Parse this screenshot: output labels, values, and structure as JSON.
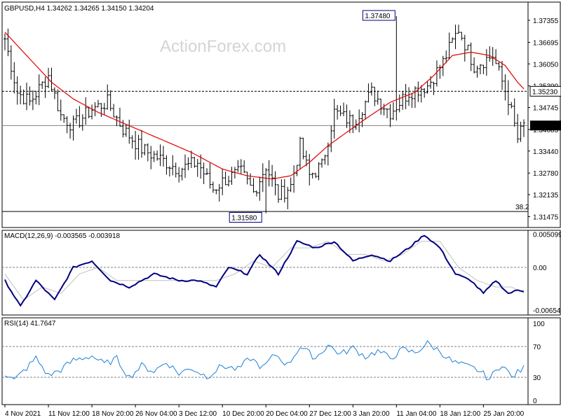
{
  "chart_data": [
    {
      "type": "ohlc",
      "title": "GBPUSD,H4  1.34262 1.34265 1.34150 1.34204",
      "watermark": "ActionForex.com",
      "ylim": [
        1.3115,
        1.379
      ],
      "y_ticks": [
        "1.37355",
        "1.36695",
        "1.36050",
        "1.35390",
        "1.34745",
        "1.34085",
        "1.33440",
        "1.32780",
        "1.32135",
        "1.31475"
      ],
      "y_tick_values": [
        1.37355,
        1.36695,
        1.3605,
        1.3539,
        1.34745,
        1.34085,
        1.3344,
        1.3278,
        1.32135,
        1.31475
      ],
      "current_price": "1.34204",
      "current_price_value": 1.34204,
      "resistance_line": "1.35230",
      "resistance_value": 1.3523,
      "fib_line_value": 1.3163,
      "fib_label": "38.2",
      "high_label": "1.37480",
      "high_value": 1.3748,
      "low_label": "1.31580",
      "low_value": 1.3158,
      "bar_count": 168,
      "close_keypoints": [
        [
          0,
          1.368
        ],
        [
          4,
          1.352
        ],
        [
          8,
          1.349
        ],
        [
          14,
          1.357
        ],
        [
          18,
          1.345
        ],
        [
          22,
          1.342
        ],
        [
          28,
          1.347
        ],
        [
          33,
          1.349
        ],
        [
          38,
          1.341
        ],
        [
          44,
          1.335
        ],
        [
          50,
          1.332
        ],
        [
          56,
          1.329
        ],
        [
          62,
          1.331
        ],
        [
          67,
          1.323
        ],
        [
          71,
          1.326
        ],
        [
          76,
          1.328
        ],
        [
          80,
          1.322
        ],
        [
          84,
          1.33
        ],
        [
          88,
          1.321
        ],
        [
          92,
          1.324
        ],
        [
          95,
          1.336
        ],
        [
          98,
          1.327
        ],
        [
          102,
          1.33
        ],
        [
          106,
          1.346
        ],
        [
          112,
          1.343
        ],
        [
          118,
          1.352
        ],
        [
          124,
          1.346
        ],
        [
          130,
          1.352
        ],
        [
          136,
          1.354
        ],
        [
          141,
          1.361
        ],
        [
          146,
          1.371
        ],
        [
          151,
          1.36
        ],
        [
          157,
          1.363
        ],
        [
          162,
          1.35
        ],
        [
          165,
          1.338
        ],
        [
          167,
          1.342
        ]
      ],
      "ma_keypoints": [
        [
          0,
          1.37
        ],
        [
          8,
          1.362
        ],
        [
          15,
          1.355
        ],
        [
          22,
          1.35
        ],
        [
          30,
          1.346
        ],
        [
          40,
          1.342
        ],
        [
          50,
          1.338
        ],
        [
          60,
          1.334
        ],
        [
          70,
          1.329
        ],
        [
          78,
          1.327
        ],
        [
          86,
          1.326
        ],
        [
          92,
          1.327
        ],
        [
          98,
          1.331
        ],
        [
          104,
          1.336
        ],
        [
          110,
          1.34
        ],
        [
          116,
          1.344
        ],
        [
          124,
          1.349
        ],
        [
          132,
          1.352
        ],
        [
          138,
          1.357
        ],
        [
          144,
          1.363
        ],
        [
          150,
          1.364
        ],
        [
          156,
          1.363
        ],
        [
          161,
          1.36
        ],
        [
          165,
          1.355
        ],
        [
          167,
          1.353
        ]
      ]
    },
    {
      "type": "line",
      "title": "MACD(12,26,9) -0.003565 -0.003918",
      "ylim": [
        -0.0073,
        0.0057
      ],
      "y_ticks": [
        "0.005099",
        "0.00",
        "-0.006543"
      ],
      "y_tick_values": [
        0.005099,
        0.0,
        -0.006543
      ],
      "zero_label": "0.00",
      "series": [
        {
          "name": "MACD",
          "color": "#000080",
          "keypoints": [
            [
              0,
              -0.002
            ],
            [
              5,
              -0.006
            ],
            [
              10,
              -0.002
            ],
            [
              16,
              -0.005
            ],
            [
              22,
              0.0
            ],
            [
              28,
              0.001
            ],
            [
              34,
              -0.002
            ],
            [
              40,
              -0.003
            ],
            [
              48,
              -0.001
            ],
            [
              56,
              -0.002
            ],
            [
              62,
              -0.002
            ],
            [
              68,
              -0.003
            ],
            [
              72,
              0.0
            ],
            [
              78,
              -0.001
            ],
            [
              82,
              0.002
            ],
            [
              88,
              -0.001
            ],
            [
              94,
              0.004
            ],
            [
              100,
              0.003
            ],
            [
              106,
              0.004
            ],
            [
              112,
              0.001
            ],
            [
              118,
              0.002
            ],
            [
              124,
              0.001
            ],
            [
              130,
              0.003
            ],
            [
              135,
              0.005
            ],
            [
              140,
              0.003
            ],
            [
              145,
              -0.001
            ],
            [
              150,
              -0.002
            ],
            [
              154,
              -0.004
            ],
            [
              158,
              -0.002
            ],
            [
              162,
              -0.004
            ],
            [
              165,
              -0.0035
            ],
            [
              167,
              -0.0036
            ]
          ]
        },
        {
          "name": "Signal",
          "color": "#c0c0c0",
          "keypoints": [
            [
              0,
              -0.001
            ],
            [
              6,
              -0.005
            ],
            [
              12,
              -0.003
            ],
            [
              18,
              -0.004
            ],
            [
              24,
              -0.001
            ],
            [
              30,
              0.0
            ],
            [
              36,
              -0.002
            ],
            [
              44,
              -0.002
            ],
            [
              52,
              -0.002
            ],
            [
              60,
              -0.002
            ],
            [
              68,
              -0.002
            ],
            [
              74,
              -0.001
            ],
            [
              80,
              0.001
            ],
            [
              86,
              0.0
            ],
            [
              92,
              0.003
            ],
            [
              98,
              0.003
            ],
            [
              104,
              0.004
            ],
            [
              110,
              0.002
            ],
            [
              116,
              0.002
            ],
            [
              122,
              0.001
            ],
            [
              128,
              0.002
            ],
            [
              134,
              0.004
            ],
            [
              140,
              0.004
            ],
            [
              146,
              0.0
            ],
            [
              152,
              -0.002
            ],
            [
              158,
              -0.003
            ],
            [
              163,
              -0.003
            ],
            [
              167,
              -0.0039
            ]
          ]
        }
      ]
    },
    {
      "type": "line",
      "title": "RSI(14) 41.7647",
      "ylim": [
        0,
        100
      ],
      "y_ticks": [
        "100",
        "70",
        "30",
        "0"
      ],
      "y_tick_values": [
        100,
        70,
        30,
        0
      ],
      "levels": [
        70,
        30
      ],
      "series": [
        {
          "name": "RSI",
          "color": "#1e7fd6",
          "keypoints": [
            [
              0,
              35
            ],
            [
              3,
              26
            ],
            [
              7,
              42
            ],
            [
              10,
              55
            ],
            [
              14,
              32
            ],
            [
              18,
              40
            ],
            [
              22,
              52
            ],
            [
              28,
              58
            ],
            [
              32,
              47
            ],
            [
              36,
              54
            ],
            [
              40,
              30
            ],
            [
              44,
              45
            ],
            [
              48,
              38
            ],
            [
              52,
              50
            ],
            [
              56,
              35
            ],
            [
              60,
              42
            ],
            [
              65,
              31
            ],
            [
              70,
              45
            ],
            [
              75,
              40
            ],
            [
              79,
              55
            ],
            [
              83,
              42
            ],
            [
              87,
              60
            ],
            [
              91,
              46
            ],
            [
              95,
              70
            ],
            [
              100,
              55
            ],
            [
              104,
              72
            ],
            [
              108,
              60
            ],
            [
              112,
              68
            ],
            [
              116,
              57
            ],
            [
              120,
              64
            ],
            [
              124,
              55
            ],
            [
              128,
              66
            ],
            [
              132,
              62
            ],
            [
              136,
              74
            ],
            [
              140,
              64
            ],
            [
              144,
              50
            ],
            [
              148,
              45
            ],
            [
              152,
              40
            ],
            [
              156,
              28
            ],
            [
              160,
              48
            ],
            [
              163,
              30
            ],
            [
              167,
              42
            ]
          ]
        }
      ]
    }
  ],
  "x_axis": {
    "labels": [
      "4 Nov 2021",
      "11 Nov 12:00",
      "18 Nov 20:00",
      "26 Nov 04:00",
      "3 Dec 12:00",
      "10 Dec 20:00",
      "20 Dec 04:00",
      "27 Dec 12:00",
      "3 Jan 20:00",
      "11 Jan 04:00",
      "18 Jan 12:00",
      "25 Jan 20:00"
    ],
    "bar_index": [
      0,
      14,
      28,
      42,
      56,
      70,
      84,
      98,
      112,
      126,
      140,
      154
    ]
  },
  "colors": {
    "bars": "#000000",
    "ma": "#e00000",
    "grid": "#808080",
    "current_price_bg": "#000000",
    "current_price_fg": "#ffffff",
    "macd": "#000080",
    "signal": "#c0c0c0",
    "rsi": "#1e7fd6"
  }
}
